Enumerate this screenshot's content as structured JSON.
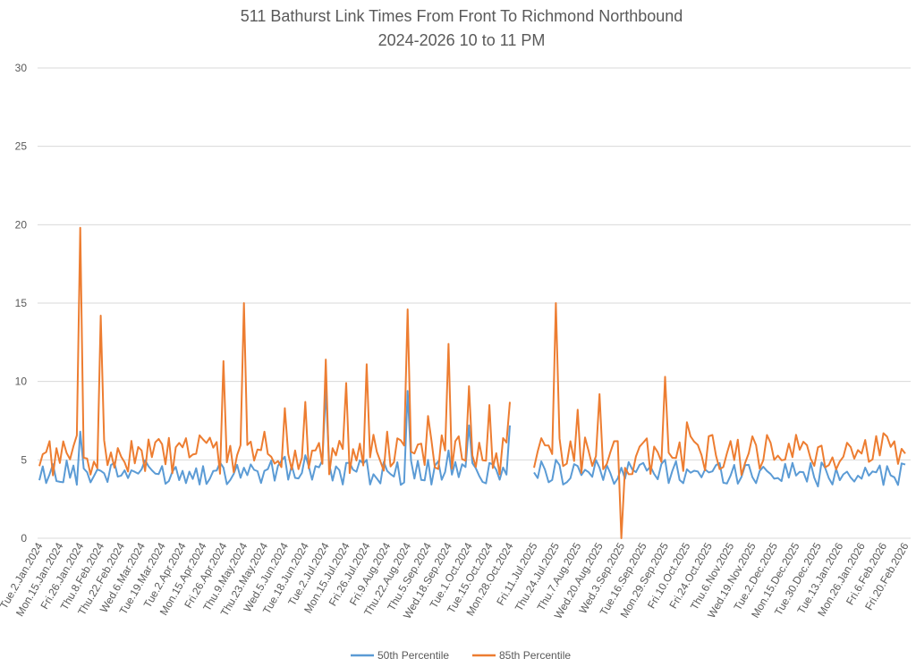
{
  "chart_data": {
    "type": "line",
    "title": "511 Bathurst Link Times From Front To Richmond Northbound",
    "subtitle": "2024-2026 10 to 11 PM",
    "xlabel": "",
    "ylabel": "",
    "ylim": [
      0,
      30
    ],
    "yticks": [
      0,
      5,
      10,
      15,
      20,
      25,
      30
    ],
    "grid": true,
    "legend_position": "bottom",
    "x_tick_labels": [
      "Tue.2.Jan.2024",
      "Mon.15.Jan.2024",
      "Fri.26.Jan.2024",
      "Thu.8.Feb.2024",
      "Thu.22.Feb.2024",
      "Wed.6.Mar.2024",
      "Tue.19.Mar.2024",
      "Tue.2.Apr.2024",
      "Mon.15.Apr.2024",
      "Fri.26.Apr.2024",
      "Thu.9.May.2024",
      "Thu.23.May.2024",
      "Wed.5.Jun.2024",
      "Tue.18.Jun.2024",
      "Tue.2.Jul.2024",
      "Mon.15.Jul.2024",
      "Fri.26.Jul.2024",
      "Fri.9.Aug.2024",
      "Thu.22.Aug.2024",
      "Thu.5.Sep.2024",
      "Wed.18.Sep.2024",
      "Tue.1.Oct.2024",
      "Tue.15.Oct.2024",
      "Mon.28.Oct.2024",
      "Fri.11.Jul.2025",
      "Thu.24.Jul.2025",
      "Thu.7.Aug.2025",
      "Wed.20.Aug.2025",
      "Wed.3.Sep.2025",
      "Tue.16.Sep.2025",
      "Mon.29.Sep.2025",
      "Fri.10.Oct.2025",
      "Fri.24.Oct.2025",
      "Thu.6.Nov.2025",
      "Wed.19.Nov.2025",
      "Tue.2.Dec.2025",
      "Mon.15.Dec.2025",
      "Tue.30.Dec.2025",
      "Tue.13.Jan.2026",
      "Mon.26.Jan.2026",
      "Fri.6.Feb.2026",
      "Fri.20.Feb.2026"
    ],
    "series": [
      {
        "name": "50th Percentile",
        "color": "#5b9bd5",
        "segments": [
          {
            "x": [
              "Tue.2.Jan.2024",
              "Mon.15.Jan.2024",
              "Fri.26.Jan.2024",
              "Thu.8.Feb.2024",
              "Thu.22.Feb.2024",
              "Wed.6.Mar.2024",
              "Tue.19.Mar.2024",
              "Tue.2.Apr.2024",
              "Mon.15.Apr.2024",
              "Fri.26.Apr.2024",
              "Thu.9.May.2024",
              "Thu.23.May.2024",
              "Wed.5.Jun.2024",
              "Tue.18.Jun.2024",
              "Tue.2.Jul.2024",
              "Mon.15.Jul.2024",
              "Fri.26.Jul.2024",
              "Fri.9.Aug.2024",
              "Thu.22.Aug.2024",
              "Thu.5.Sep.2024",
              "Wed.18.Sep.2024",
              "Tue.1.Oct.2024",
              "Tue.15.Oct.2024",
              "Mon.28.Oct.2024"
            ],
            "values": [
              3.7,
              3.6,
              6.8,
              4.3,
              4.0,
              4.4,
              4.6,
              4.3,
              4.6,
              4.5,
              4.5,
              4.3,
              5.2,
              5.3,
              9.5,
              4.8,
              5.0,
              4.3,
              9.4,
              5.0,
              5.6,
              7.2,
              4.8,
              7.2
            ]
          },
          {
            "x": [
              "Fri.11.Jul.2025",
              "Thu.24.Jul.2025",
              "Thu.7.Aug.2025",
              "Wed.20.Aug.2025",
              "Wed.3.Sep.2025",
              "Tue.16.Sep.2025",
              "Mon.29.Sep.2025",
              "Fri.10.Oct.2025",
              "Fri.24.Oct.2025",
              "Thu.6.Nov.2025",
              "Wed.19.Nov.2025",
              "Tue.2.Dec.2025",
              "Mon.15.Dec.2025",
              "Tue.30.Dec.2025",
              "Tue.13.Jan.2026",
              "Mon.26.Jan.2026",
              "Fri.6.Feb.2026",
              "Fri.20.Feb.2026"
            ],
            "values": [
              4.2,
              5.0,
              4.6,
              4.5,
              4.5,
              4.8,
              5.0,
              4.4,
              4.2,
              4.0,
              3.9,
              3.8,
              4.0,
              3.3,
              3.7,
              3.8,
              3.4,
              4.7
            ]
          }
        ]
      },
      {
        "name": "85th Percentile",
        "color": "#ed7d31",
        "segments": [
          {
            "x": [
              "Tue.2.Jan.2024",
              "Mon.15.Jan.2024",
              "Fri.26.Jan.2024",
              "Thu.8.Feb.2024",
              "Thu.22.Feb.2024",
              "Wed.6.Mar.2024",
              "Tue.19.Mar.2024",
              "Tue.2.Apr.2024",
              "Mon.15.Apr.2024",
              "Fri.26.Apr.2024",
              "Thu.9.May.2024",
              "Thu.23.May.2024",
              "Wed.5.Jun.2024",
              "Tue.18.Jun.2024",
              "Tue.2.Jul.2024",
              "Mon.15.Jul.2024",
              "Fri.26.Jul.2024",
              "Fri.9.Aug.2024",
              "Thu.22.Aug.2024",
              "Thu.5.Sep.2024",
              "Wed.18.Sep.2024",
              "Tue.1.Oct.2024",
              "Tue.15.Oct.2024",
              "Mon.28.Oct.2024"
            ],
            "values": [
              4.6,
              4.8,
              19.8,
              14.2,
              5.2,
              5.6,
              6.0,
              5.8,
              6.3,
              11.3,
              15.0,
              6.8,
              8.3,
              8.7,
              11.4,
              9.9,
              11.1,
              6.8,
              14.6,
              7.8,
              12.4,
              9.7,
              8.5,
              8.7
            ]
          },
          {
            "x": [
              "Fri.11.Jul.2025",
              "Thu.24.Jul.2025",
              "Thu.7.Aug.2025",
              "Wed.20.Aug.2025",
              "Wed.3.Sep.2025",
              "Tue.16.Sep.2025",
              "Mon.29.Sep.2025",
              "Fri.10.Oct.2025",
              "Fri.24.Oct.2025",
              "Thu.6.Nov.2025",
              "Wed.19.Nov.2025",
              "Tue.2.Dec.2025",
              "Mon.15.Dec.2025",
              "Tue.30.Dec.2025",
              "Tue.13.Jan.2026",
              "Mon.26.Jan.2026",
              "Fri.6.Feb.2026",
              "Fri.20.Feb.2026"
            ],
            "values": [
              4.5,
              15.0,
              8.2,
              9.2,
              0.0,
              6.1,
              10.3,
              7.4,
              6.5,
              6.2,
              6.5,
              5.0,
              6.6,
              5.8,
              4.9,
              5.4,
              6.7,
              5.4
            ]
          }
        ]
      }
    ]
  }
}
